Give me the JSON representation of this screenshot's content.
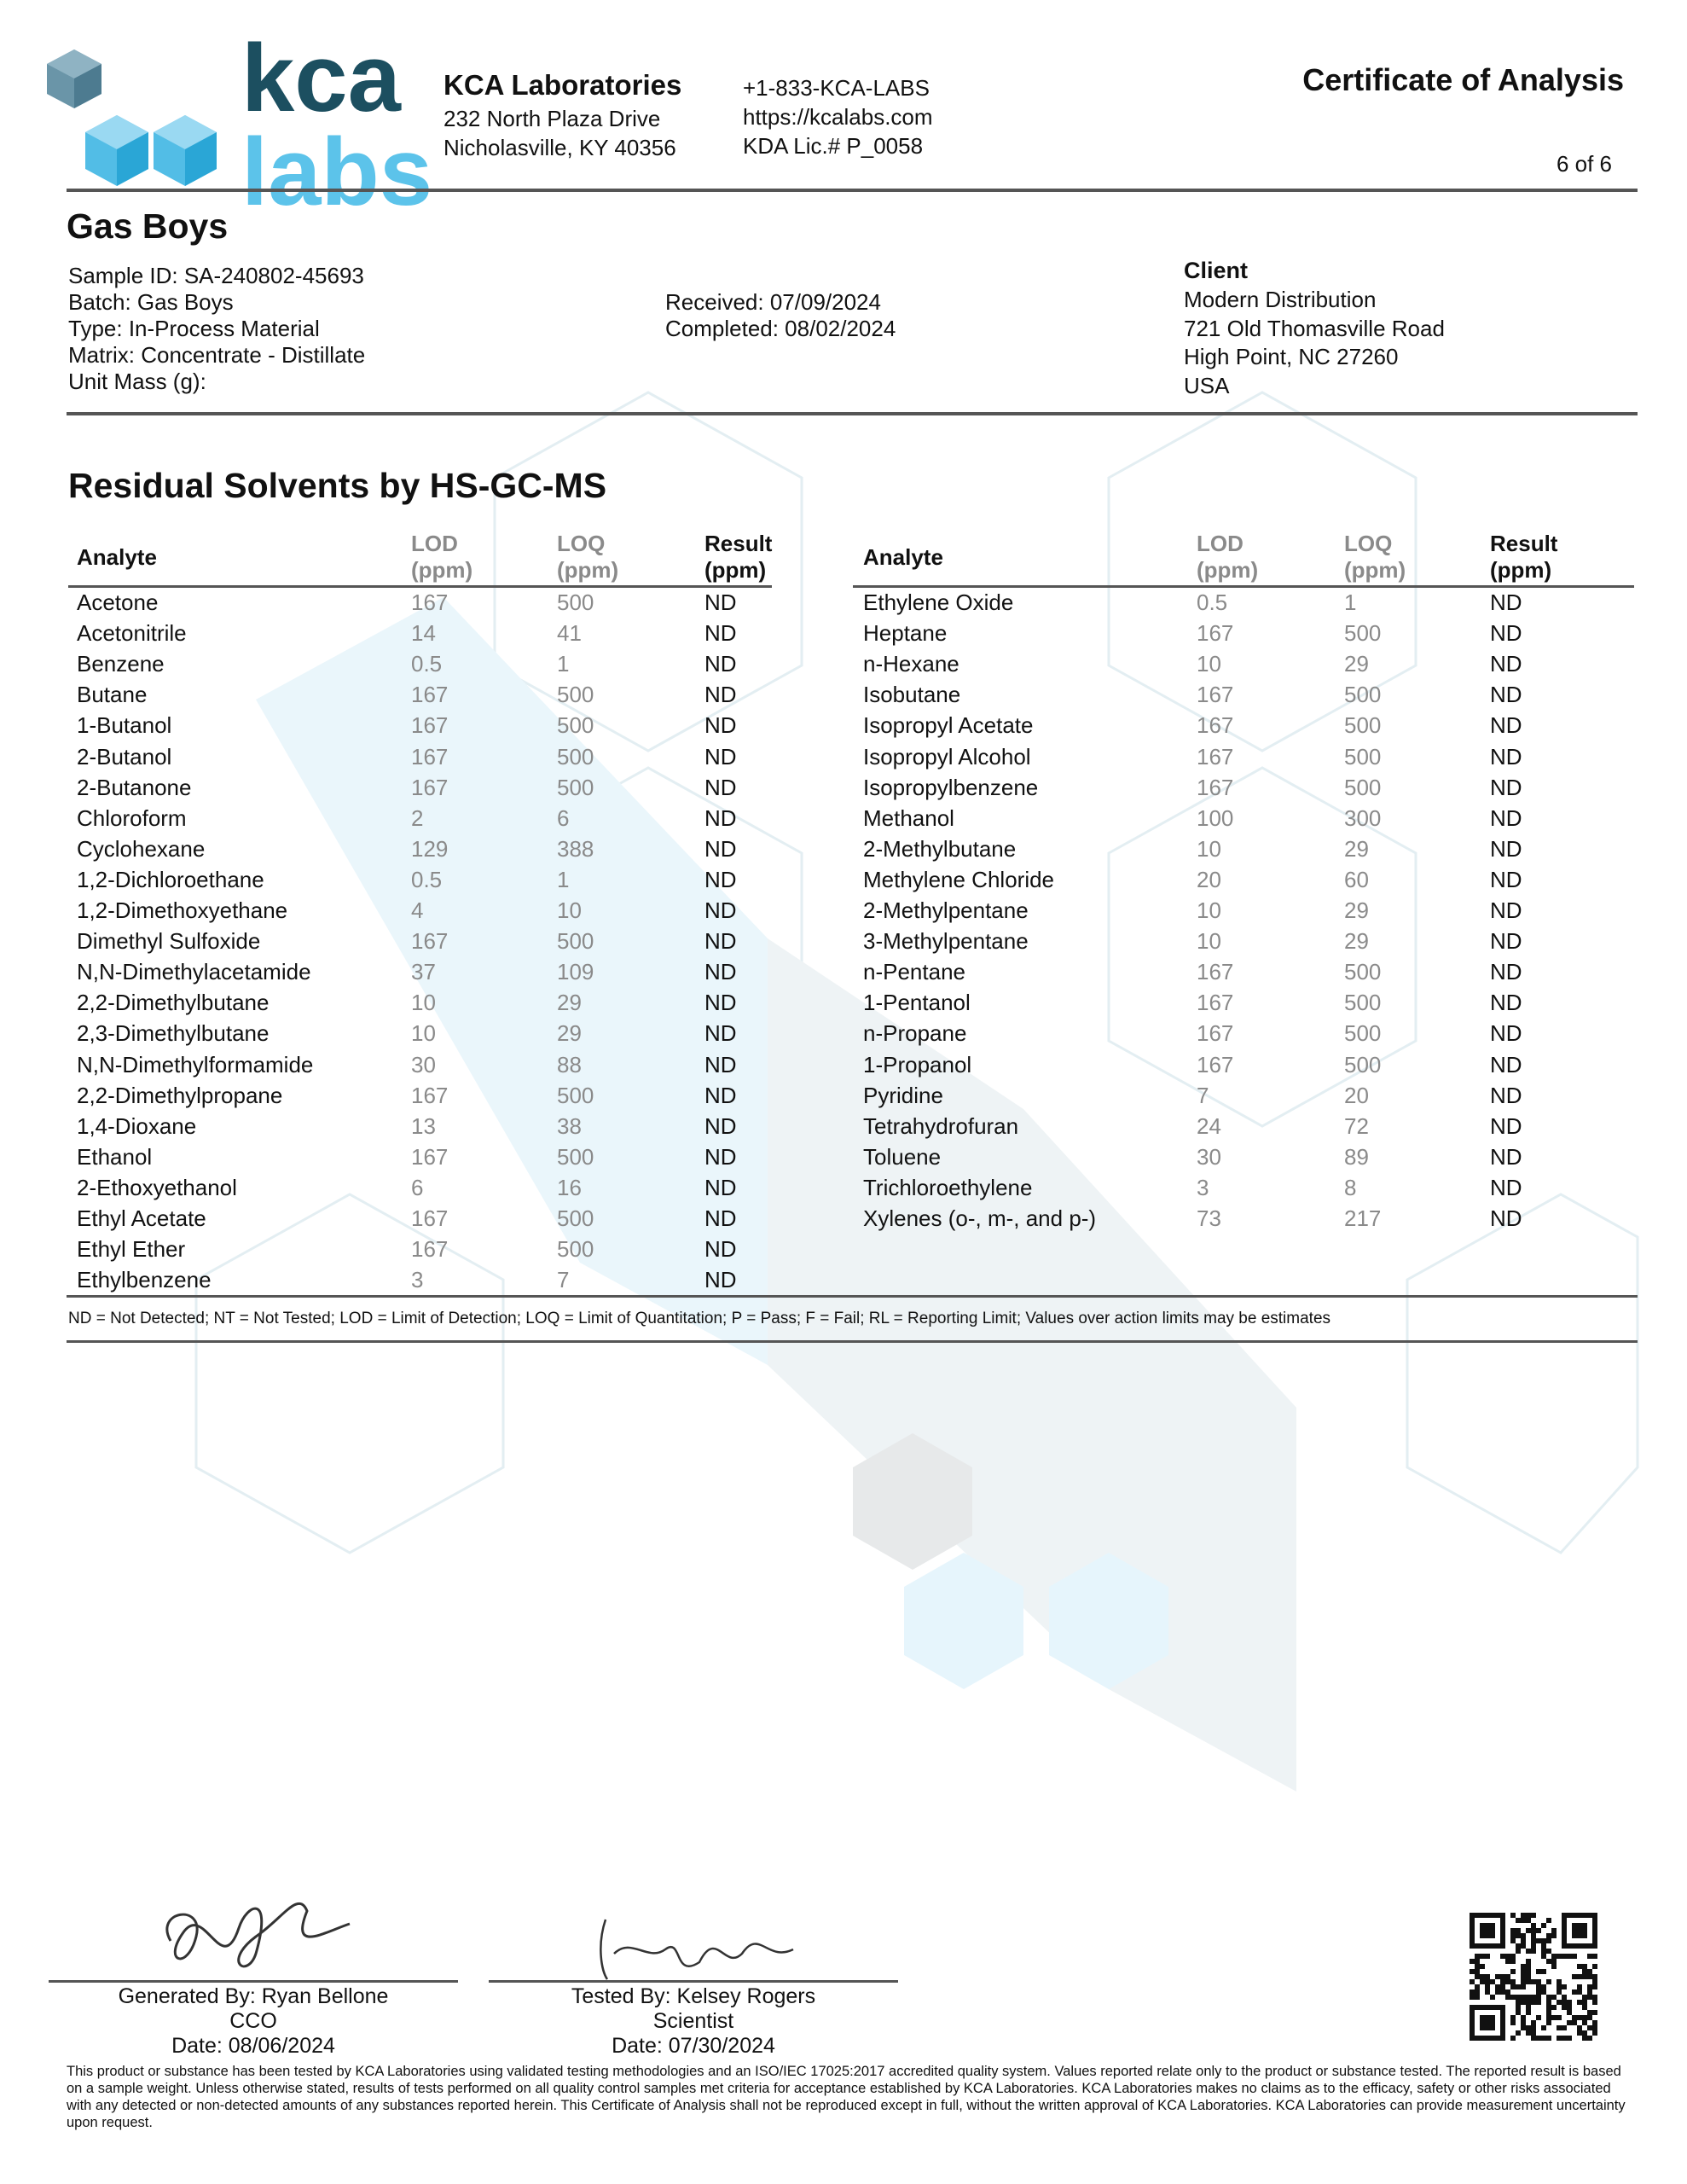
{
  "header": {
    "logo_top": "kca",
    "logo_bottom": "labs",
    "company": "KCA Laboratories",
    "address": [
      "232 North Plaza Drive",
      "Nicholasville, KY 40356"
    ],
    "contact": [
      "+1-833-KCA-LABS",
      "https://kcalabs.com",
      "KDA Lic.# P_0058"
    ],
    "title": "Certificate of Analysis",
    "page": "6 of 6"
  },
  "sample": {
    "name": "Gas Boys",
    "fields": [
      "Sample ID: SA-240802-45693",
      "Batch: Gas Boys",
      "Type: In-Process Material",
      "Matrix: Concentrate - Distillate",
      "Unit Mass (g):"
    ],
    "received": "Received: 07/09/2024",
    "completed": "Completed: 08/02/2024",
    "client_label": "Client",
    "client": [
      "Modern Distribution",
      "721 Old Thomasville Road",
      "High Point, NC 27260",
      "USA"
    ]
  },
  "section_title": "Residual Solvents by HS-GC-MS",
  "table": {
    "columns": [
      {
        "name": "Analyte"
      },
      {
        "name": "LOD",
        "unit": "(ppm)"
      },
      {
        "name": "LOQ",
        "unit": "(ppm)"
      },
      {
        "name": "Result",
        "unit": "(ppm)"
      }
    ],
    "left": [
      [
        "Acetone",
        167,
        500,
        "ND"
      ],
      [
        "Acetonitrile",
        14,
        41,
        "ND"
      ],
      [
        "Benzene",
        0.5,
        1,
        "ND"
      ],
      [
        "Butane",
        167,
        500,
        "ND"
      ],
      [
        "1-Butanol",
        167,
        500,
        "ND"
      ],
      [
        "2-Butanol",
        167,
        500,
        "ND"
      ],
      [
        "2-Butanone",
        167,
        500,
        "ND"
      ],
      [
        "Chloroform",
        2,
        6,
        "ND"
      ],
      [
        "Cyclohexane",
        129,
        388,
        "ND"
      ],
      [
        "1,2-Dichloroethane",
        0.5,
        1,
        "ND"
      ],
      [
        "1,2-Dimethoxyethane",
        4,
        10,
        "ND"
      ],
      [
        "Dimethyl Sulfoxide",
        167,
        500,
        "ND"
      ],
      [
        "N,N-Dimethylacetamide",
        37,
        109,
        "ND"
      ],
      [
        "2,2-Dimethylbutane",
        10,
        29,
        "ND"
      ],
      [
        "2,3-Dimethylbutane",
        10,
        29,
        "ND"
      ],
      [
        "N,N-Dimethylformamide",
        30,
        88,
        "ND"
      ],
      [
        "2,2-Dimethylpropane",
        167,
        500,
        "ND"
      ],
      [
        "1,4-Dioxane",
        13,
        38,
        "ND"
      ],
      [
        "Ethanol",
        167,
        500,
        "ND"
      ],
      [
        "2-Ethoxyethanol",
        6,
        16,
        "ND"
      ],
      [
        "Ethyl Acetate",
        167,
        500,
        "ND"
      ],
      [
        "Ethyl Ether",
        167,
        500,
        "ND"
      ],
      [
        "Ethylbenzene",
        3,
        7,
        "ND"
      ]
    ],
    "right": [
      [
        "Ethylene Oxide",
        0.5,
        1,
        "ND"
      ],
      [
        "Heptane",
        167,
        500,
        "ND"
      ],
      [
        "n-Hexane",
        10,
        29,
        "ND"
      ],
      [
        "Isobutane",
        167,
        500,
        "ND"
      ],
      [
        "Isopropyl Acetate",
        167,
        500,
        "ND"
      ],
      [
        "Isopropyl Alcohol",
        167,
        500,
        "ND"
      ],
      [
        "Isopropylbenzene",
        167,
        500,
        "ND"
      ],
      [
        "Methanol",
        100,
        300,
        "ND"
      ],
      [
        "2-Methylbutane",
        10,
        29,
        "ND"
      ],
      [
        "Methylene Chloride",
        20,
        60,
        "ND"
      ],
      [
        "2-Methylpentane",
        10,
        29,
        "ND"
      ],
      [
        "3-Methylpentane",
        10,
        29,
        "ND"
      ],
      [
        "n-Pentane",
        167,
        500,
        "ND"
      ],
      [
        "1-Pentanol",
        167,
        500,
        "ND"
      ],
      [
        "n-Propane",
        167,
        500,
        "ND"
      ],
      [
        "1-Propanol",
        167,
        500,
        "ND"
      ],
      [
        "Pyridine",
        7,
        20,
        "ND"
      ],
      [
        "Tetrahydrofuran",
        24,
        72,
        "ND"
      ],
      [
        "Toluene",
        30,
        89,
        "ND"
      ],
      [
        "Trichloroethylene",
        3,
        8,
        "ND"
      ],
      [
        "Xylenes (o-, m-, and p-)",
        73,
        217,
        "ND"
      ]
    ]
  },
  "footnote": "ND = Not Detected; NT = Not Tested; LOD = Limit of Detection; LOQ = Limit of Quantitation; P = Pass; F = Fail; RL = Reporting Limit; Values over action limits may be estimates",
  "signatures": [
    [
      "Generated By: Ryan Bellone",
      "CCO",
      "Date: 08/06/2024"
    ],
    [
      "Tested By: Kelsey Rogers",
      "Scientist",
      "Date: 07/30/2024"
    ]
  ],
  "disclaimer": "This product or substance has been tested by KCA Laboratories using validated testing methodologies and an ISO/IEC 17025:2017 accredited quality system. Values reported relate only to the product or substance tested. The reported result is based on a sample weight. Unless otherwise stated, results of tests performed on all quality control samples met criteria for acceptance established by KCA Laboratories. KCA Laboratories makes no claims as to the efficacy, safety or other risks associated with any detected or non-detected amounts of any substances reported herein. This Certificate of Analysis shall not be reproduced except in full, without the written approval of KCA Laboratories. KCA Laboratories can provide measurement uncertainty upon request."
}
